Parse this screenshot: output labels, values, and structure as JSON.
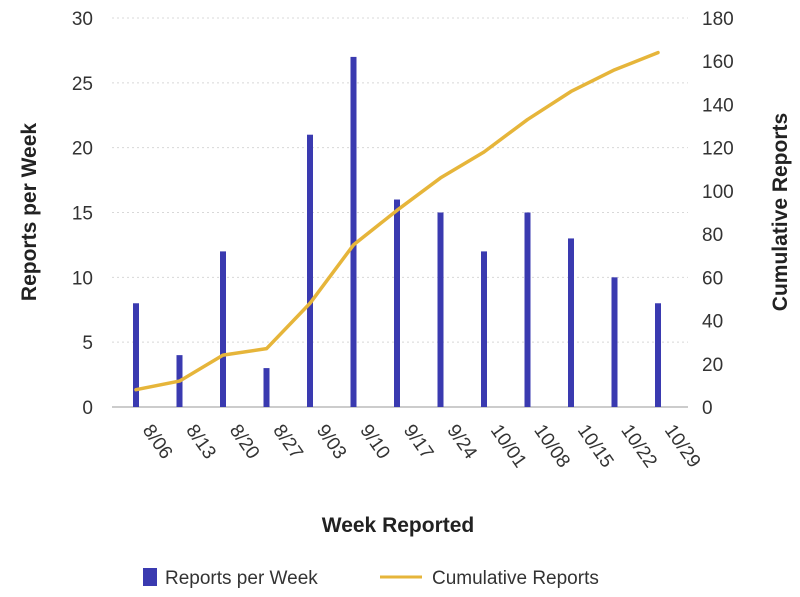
{
  "chart_data": {
    "type": "bar",
    "categories": [
      "8/06",
      "8/13",
      "8/20",
      "8/27",
      "9/03",
      "9/10",
      "9/17",
      "9/24",
      "10/01",
      "10/08",
      "10/15",
      "10/22",
      "10/29"
    ],
    "series": [
      {
        "name": "Reports per Week",
        "type": "bar",
        "axis": "left",
        "color": "#3a3ab0",
        "values": [
          8,
          4,
          12,
          3,
          21,
          27,
          16,
          15,
          12,
          15,
          13,
          10,
          8
        ]
      },
      {
        "name": "Cumulative Reports",
        "type": "line",
        "axis": "right",
        "color": "#e6b53a",
        "values": [
          8,
          12,
          24,
          27,
          48,
          75,
          91,
          106,
          118,
          133,
          146,
          156,
          164
        ]
      }
    ],
    "xlabel": "Week Reported",
    "ylabel": "Reports per Week",
    "y2label": "Cumulative Reports",
    "ylim": [
      0,
      30
    ],
    "yticks": [
      0,
      5,
      10,
      15,
      20,
      25,
      30
    ],
    "y2lim": [
      0,
      180
    ],
    "y2ticks": [
      0,
      20,
      40,
      60,
      80,
      100,
      120,
      140,
      160,
      180
    ],
    "grid": true,
    "legend_position": "bottom"
  }
}
